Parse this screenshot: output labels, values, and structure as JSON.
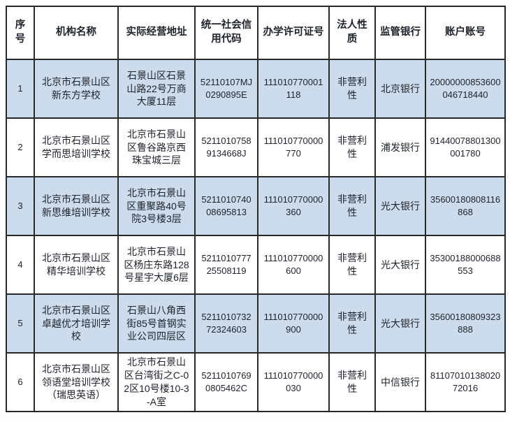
{
  "colors": {
    "row_alt": "#ccdcec",
    "border": "#26282a",
    "text": "#1e222a",
    "background": "#fdfdfd"
  },
  "table": {
    "headers": [
      "序号",
      "机构名称",
      "实际经营地址",
      "统一社会信用代码",
      "办学许可证号",
      "法人性质",
      "监管银行",
      "账户账号"
    ],
    "column_keys": [
      "seq",
      "name",
      "address",
      "credit_code",
      "license_no",
      "legal_nature",
      "bank",
      "account"
    ],
    "rows": [
      {
        "seq": "1",
        "name": "北京市石景山区新东方学校",
        "address": "石景山区石景山路22号万商大厦11层",
        "credit_code": "52110107MJ0290895E",
        "license_no": "111010770001118",
        "legal_nature": "非营利性",
        "bank": "北京银行",
        "account": "20000000853600046718440"
      },
      {
        "seq": "2",
        "name": "北京市石景山区学而思培训学校",
        "address": "北京市石景山区鲁谷路京西珠宝城三层",
        "credit_code": "52110107589134668J",
        "license_no": "111010770000770",
        "legal_nature": "非营利性",
        "bank": "浦发银行",
        "account": "91440078801300001780"
      },
      {
        "seq": "3",
        "name": "北京市石景山区新思维培训学校",
        "address": "北京市石景山区重聚路40号院3号楼3层",
        "credit_code": "521101074008695813",
        "license_no": "111010770000360",
        "legal_nature": "非营利性",
        "bank": "光大银行",
        "account": "35600180808116868"
      },
      {
        "seq": "4",
        "name": "北京市石景山区精华培训学校",
        "address": "北京市石景山区杨庄东路128号星宇大厦6层",
        "credit_code": "521101077725508119",
        "license_no": "111010770000600",
        "legal_nature": "非营利性",
        "bank": "光大银行",
        "account": "35300188000688553"
      },
      {
        "seq": "5",
        "name": "北京市石景山区卓越优才培训学校",
        "address": "石景山八角西街85号首钢实业公司四层区",
        "credit_code": "521101073272324603",
        "license_no": "111010770000900",
        "legal_nature": "非营利性",
        "bank": "光大银行",
        "account": "35600180809323888"
      },
      {
        "seq": "6",
        "name": "北京市石景山区领语堂培训学校（瑞思英语）",
        "address": "北京市石景山区台湾街之C-02区10号楼10-3-A室",
        "credit_code": "52110107690805462C",
        "license_no": "111010770000030",
        "legal_nature": "非营利性",
        "bank": "中信银行",
        "account": "8110701013802072016"
      }
    ]
  }
}
